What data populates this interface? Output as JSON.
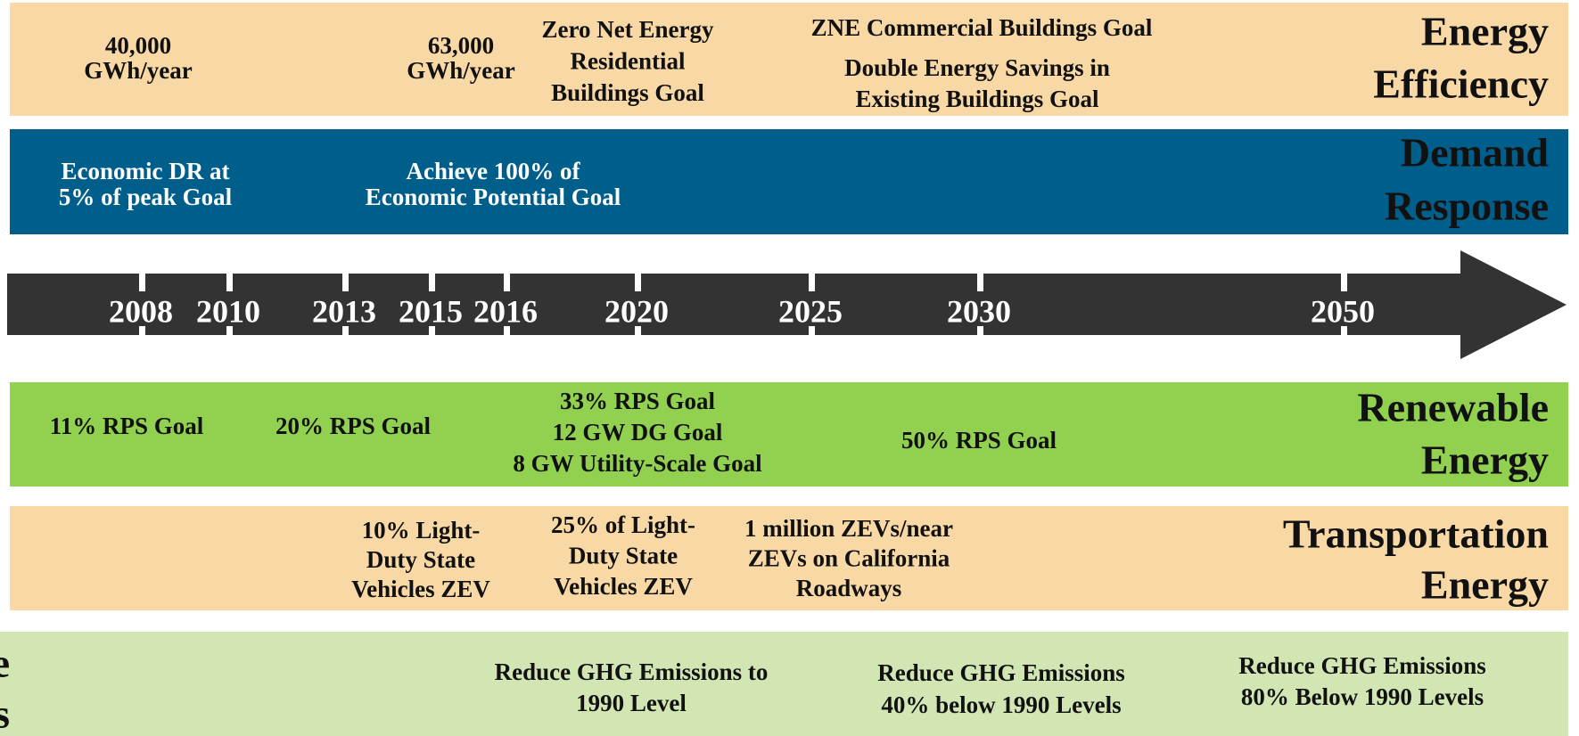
{
  "bands": [
    {
      "title": [
        "Energy",
        "Efficiency"
      ],
      "goals": [
        [
          "40,000",
          "GWh/year"
        ],
        [
          "63,000",
          "GWh/year"
        ],
        [
          "Zero Net Energy",
          "Residential",
          "Buildings Goal"
        ],
        [
          "ZNE Commercial Buildings Goal"
        ],
        [
          "Double Energy Savings in",
          "Existing Buildings Goal"
        ]
      ]
    },
    {
      "title": [
        "Demand",
        "Response"
      ],
      "goals": [
        [
          "Economic DR at",
          "5% of peak Goal"
        ],
        [
          "Achieve 100% of",
          "Economic Potential Goal"
        ]
      ]
    },
    {
      "title": [
        "Renewable",
        "Energy"
      ],
      "goals": [
        [
          "11% RPS Goal"
        ],
        [
          "20% RPS Goal"
        ],
        [
          "33% RPS Goal",
          "12 GW DG Goal",
          "8 GW Utility-Scale Goal"
        ],
        [
          "50% RPS Goal"
        ]
      ]
    },
    {
      "title": [
        "Transportation",
        "Energy"
      ],
      "goals": [
        [
          "10% Light-",
          "Duty State",
          "Vehicles ZEV"
        ],
        [
          "25% of Light-",
          "Duty State",
          "Vehicles ZEV"
        ],
        [
          "1 million ZEVs/near",
          "ZEVs on California",
          "Roadways"
        ]
      ]
    },
    {
      "title": [
        "Greenhouse",
        "Gas Reductions"
      ],
      "goals": [
        [
          "Reduce GHG Emissions to",
          "1990 Level"
        ],
        [
          "Reduce GHG Emissions",
          "40% below 1990 Levels"
        ],
        [
          "Reduce GHG Emissions",
          "80% Below 1990 Levels"
        ]
      ]
    }
  ],
  "timeline": {
    "years": [
      "2008",
      "2010",
      "2013",
      "2015",
      "2016",
      "2020",
      "2025",
      "2030",
      "2050"
    ]
  }
}
